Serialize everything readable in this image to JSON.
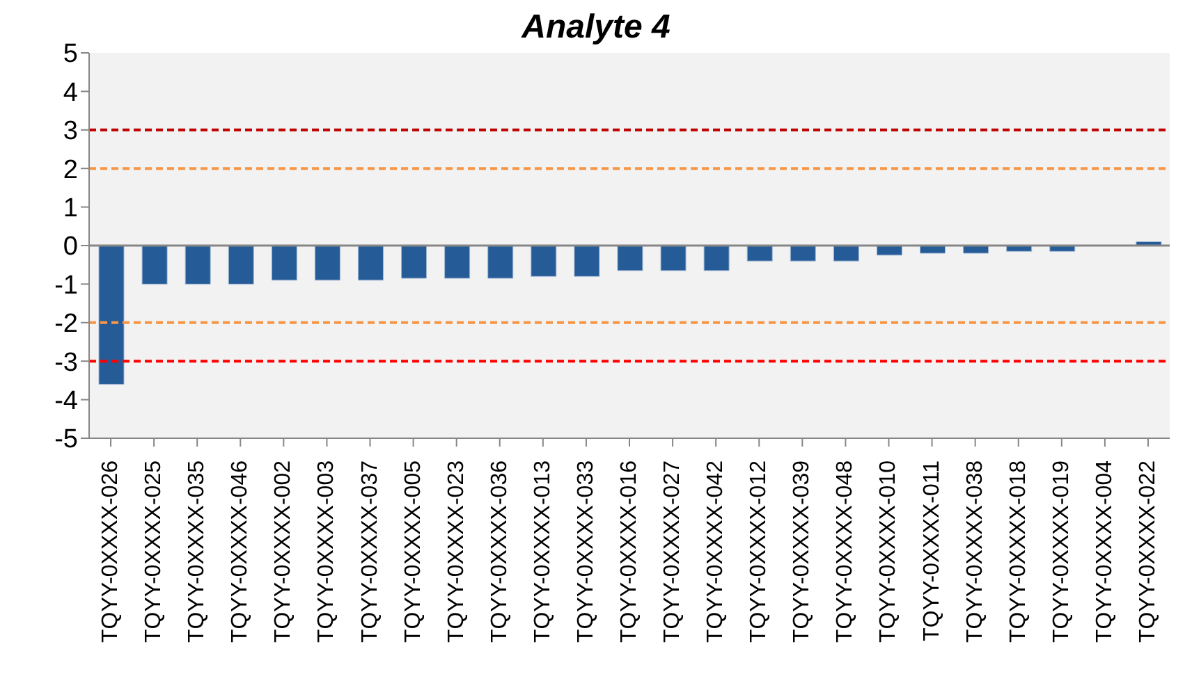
{
  "chart_data": {
    "type": "bar",
    "title": "Analyte 4",
    "categories": [
      "TQYY-0XXXX-026",
      "TQYY-0XXXX-025",
      "TQYY-0XXXX-035",
      "TQYY-0XXXX-046",
      "TQYY-0XXXX-002",
      "TQYY-0XXXX-003",
      "TQYY-0XXXX-037",
      "TQYY-0XXXX-005",
      "TQYY-0XXXX-023",
      "TQYY-0XXXX-036",
      "TQYY-0XXXX-013",
      "TQYY-0XXXX-033",
      "TQYY-0XXXX-016",
      "TQYY-0XXXX-027",
      "TQYY-0XXXX-042",
      "TQYY-0XXXX-012",
      "TQYY-0XXXX-039",
      "TQYY-0XXXX-048",
      "TQYY-0XXXX-010",
      "TQYY-0XXXX-011",
      "TQYY-0XXXX-038",
      "TQYY-0XXXX-018",
      "TQYY-0XXXX-019",
      "TQYY-0XXXX-004",
      "TQYY-0XXXX-022"
    ],
    "values": [
      -3.6,
      -1.0,
      -1.0,
      -1.0,
      -0.9,
      -0.9,
      -0.9,
      -0.85,
      -0.85,
      -0.85,
      -0.8,
      -0.8,
      -0.65,
      -0.65,
      -0.65,
      -0.4,
      -0.4,
      -0.4,
      -0.25,
      -0.2,
      -0.2,
      -0.15,
      -0.15,
      0,
      0.1
    ],
    "color": "#255b97",
    "ylim": [
      -5,
      5
    ],
    "yticks": [
      -5,
      -4,
      -3,
      -2,
      -1,
      0,
      1,
      2,
      3,
      4,
      5
    ],
    "ref_lines": [
      {
        "axis": "y",
        "value": 3,
        "color": "#c00000",
        "line_style": "dashed"
      },
      {
        "axis": "y",
        "value": 2,
        "color": "#f79646",
        "line_style": "dashed"
      },
      {
        "axis": "y",
        "value": -2,
        "color": "#f79646",
        "line_style": "dashed"
      },
      {
        "axis": "y",
        "value": -3,
        "color": "#ff0000",
        "line_style": "dashed"
      }
    ],
    "grid": false
  }
}
